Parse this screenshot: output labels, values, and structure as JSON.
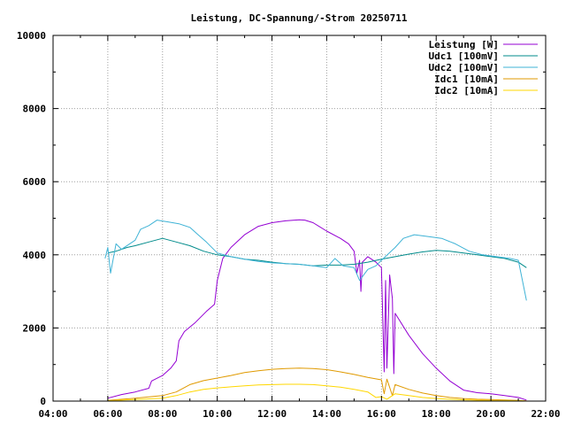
{
  "chart_data": {
    "type": "line",
    "title": "Leistung, DC-Spannung/-Strom 20250711",
    "xlabel": "",
    "ylabel": "",
    "x_unit": "hour",
    "xlim": [
      4,
      22
    ],
    "ylim": [
      0,
      10000
    ],
    "grid": true,
    "legend_position": "top-right",
    "x_ticks": [
      {
        "value": 4,
        "label": "04:00"
      },
      {
        "value": 6,
        "label": "06:00"
      },
      {
        "value": 8,
        "label": "08:00"
      },
      {
        "value": 10,
        "label": "10:00"
      },
      {
        "value": 12,
        "label": "12:00"
      },
      {
        "value": 14,
        "label": "14:00"
      },
      {
        "value": 16,
        "label": "16:00"
      },
      {
        "value": 18,
        "label": "18:00"
      },
      {
        "value": 20,
        "label": "20:00"
      },
      {
        "value": 22,
        "label": "22:00"
      }
    ],
    "y_ticks": [
      {
        "value": 0,
        "label": "0"
      },
      {
        "value": 2000,
        "label": "2000"
      },
      {
        "value": 4000,
        "label": "4000"
      },
      {
        "value": 6000,
        "label": "6000"
      },
      {
        "value": 8000,
        "label": "8000"
      },
      {
        "value": 10000,
        "label": "10000"
      }
    ],
    "series": [
      {
        "name": "Leistung [W]",
        "color": "#9400d3",
        "points": [
          [
            6.0,
            80
          ],
          [
            6.5,
            180
          ],
          [
            7.0,
            250
          ],
          [
            7.5,
            350
          ],
          [
            7.6,
            550
          ],
          [
            8.0,
            700
          ],
          [
            8.3,
            900
          ],
          [
            8.5,
            1100
          ],
          [
            8.6,
            1650
          ],
          [
            8.8,
            1900
          ],
          [
            9.2,
            2150
          ],
          [
            9.6,
            2450
          ],
          [
            9.9,
            2650
          ],
          [
            10.0,
            3300
          ],
          [
            10.2,
            3900
          ],
          [
            10.5,
            4200
          ],
          [
            11.0,
            4550
          ],
          [
            11.5,
            4780
          ],
          [
            12.0,
            4880
          ],
          [
            12.5,
            4930
          ],
          [
            13.0,
            4960
          ],
          [
            13.2,
            4950
          ],
          [
            13.5,
            4880
          ],
          [
            14.0,
            4650
          ],
          [
            14.5,
            4450
          ],
          [
            14.8,
            4300
          ],
          [
            15.0,
            4100
          ],
          [
            15.1,
            3500
          ],
          [
            15.2,
            3850
          ],
          [
            15.25,
            3000
          ],
          [
            15.3,
            3800
          ],
          [
            15.5,
            3950
          ],
          [
            15.8,
            3800
          ],
          [
            16.0,
            3650
          ],
          [
            16.1,
            800
          ],
          [
            16.15,
            3300
          ],
          [
            16.2,
            900
          ],
          [
            16.3,
            3450
          ],
          [
            16.4,
            2800
          ],
          [
            16.45,
            750
          ],
          [
            16.5,
            2400
          ],
          [
            17.0,
            1800
          ],
          [
            17.5,
            1300
          ],
          [
            18.0,
            900
          ],
          [
            18.5,
            550
          ],
          [
            19.0,
            300
          ],
          [
            19.5,
            230
          ],
          [
            20.0,
            200
          ],
          [
            20.5,
            150
          ],
          [
            21.0,
            100
          ],
          [
            21.3,
            30
          ]
        ]
      },
      {
        "name": "Udc1 [100mV]",
        "color": "#008b8b",
        "points": [
          [
            6.0,
            4050
          ],
          [
            6.3,
            4100
          ],
          [
            6.7,
            4200
          ],
          [
            7.0,
            4250
          ],
          [
            7.5,
            4350
          ],
          [
            8.0,
            4450
          ],
          [
            8.5,
            4350
          ],
          [
            9.0,
            4250
          ],
          [
            9.5,
            4100
          ],
          [
            10.0,
            4000
          ],
          [
            10.5,
            3950
          ],
          [
            11.0,
            3880
          ],
          [
            11.5,
            3850
          ],
          [
            12.0,
            3800
          ],
          [
            12.5,
            3760
          ],
          [
            13.0,
            3740
          ],
          [
            13.5,
            3700
          ],
          [
            14.0,
            3720
          ],
          [
            14.5,
            3720
          ],
          [
            15.0,
            3740
          ],
          [
            15.5,
            3800
          ],
          [
            16.0,
            3880
          ],
          [
            16.5,
            3950
          ],
          [
            17.0,
            4020
          ],
          [
            17.5,
            4080
          ],
          [
            18.0,
            4120
          ],
          [
            18.5,
            4100
          ],
          [
            19.0,
            4050
          ],
          [
            19.5,
            4000
          ],
          [
            20.0,
            3950
          ],
          [
            20.5,
            3900
          ],
          [
            21.0,
            3800
          ],
          [
            21.3,
            3650
          ]
        ]
      },
      {
        "name": "Udc2 [100mV]",
        "color": "#3fb3d6",
        "points": [
          [
            5.9,
            3900
          ],
          [
            6.0,
            4200
          ],
          [
            6.1,
            3500
          ],
          [
            6.3,
            4300
          ],
          [
            6.5,
            4150
          ],
          [
            7.0,
            4400
          ],
          [
            7.2,
            4700
          ],
          [
            7.5,
            4800
          ],
          [
            7.8,
            4950
          ],
          [
            8.2,
            4900
          ],
          [
            8.6,
            4850
          ],
          [
            9.0,
            4750
          ],
          [
            9.3,
            4550
          ],
          [
            9.6,
            4350
          ],
          [
            10.0,
            4050
          ],
          [
            10.5,
            3950
          ],
          [
            11.0,
            3880
          ],
          [
            11.5,
            3820
          ],
          [
            12.0,
            3780
          ],
          [
            12.5,
            3760
          ],
          [
            13.0,
            3740
          ],
          [
            13.5,
            3700
          ],
          [
            14.0,
            3650
          ],
          [
            14.3,
            3900
          ],
          [
            14.6,
            3700
          ],
          [
            15.0,
            3650
          ],
          [
            15.2,
            3300
          ],
          [
            15.5,
            3600
          ],
          [
            15.8,
            3700
          ],
          [
            16.0,
            3850
          ],
          [
            16.5,
            4200
          ],
          [
            16.8,
            4450
          ],
          [
            17.2,
            4550
          ],
          [
            17.7,
            4500
          ],
          [
            18.2,
            4450
          ],
          [
            18.7,
            4300
          ],
          [
            19.2,
            4100
          ],
          [
            19.7,
            4000
          ],
          [
            20.2,
            3950
          ],
          [
            20.7,
            3900
          ],
          [
            21.0,
            3850
          ],
          [
            21.3,
            2750
          ]
        ]
      },
      {
        "name": "Idc1 [10mA]",
        "color": "#e09a00",
        "points": [
          [
            6.0,
            20
          ],
          [
            7.0,
            80
          ],
          [
            8.0,
            150
          ],
          [
            8.5,
            250
          ],
          [
            9.0,
            450
          ],
          [
            9.5,
            560
          ],
          [
            10.0,
            630
          ],
          [
            10.5,
            700
          ],
          [
            11.0,
            780
          ],
          [
            11.5,
            830
          ],
          [
            12.0,
            870
          ],
          [
            12.5,
            890
          ],
          [
            13.0,
            900
          ],
          [
            13.5,
            890
          ],
          [
            14.0,
            860
          ],
          [
            14.5,
            800
          ],
          [
            15.0,
            730
          ],
          [
            15.5,
            650
          ],
          [
            16.0,
            580
          ],
          [
            16.1,
            200
          ],
          [
            16.2,
            600
          ],
          [
            16.4,
            150
          ],
          [
            16.5,
            450
          ],
          [
            17.0,
            320
          ],
          [
            17.5,
            220
          ],
          [
            18.0,
            150
          ],
          [
            18.5,
            100
          ],
          [
            19.0,
            70
          ],
          [
            19.5,
            50
          ],
          [
            20.0,
            40
          ],
          [
            20.5,
            30
          ],
          [
            21.0,
            20
          ],
          [
            21.3,
            5
          ]
        ]
      },
      {
        "name": "Idc2 [10mA]",
        "color": "#ffd700",
        "points": [
          [
            6.0,
            10
          ],
          [
            7.0,
            40
          ],
          [
            8.0,
            80
          ],
          [
            8.5,
            150
          ],
          [
            9.0,
            250
          ],
          [
            9.5,
            320
          ],
          [
            10.0,
            360
          ],
          [
            10.5,
            390
          ],
          [
            11.0,
            420
          ],
          [
            11.5,
            440
          ],
          [
            12.0,
            450
          ],
          [
            12.5,
            460
          ],
          [
            13.0,
            460
          ],
          [
            13.5,
            450
          ],
          [
            14.0,
            420
          ],
          [
            14.5,
            380
          ],
          [
            15.0,
            320
          ],
          [
            15.5,
            250
          ],
          [
            15.8,
            100
          ],
          [
            16.0,
            120
          ],
          [
            16.2,
            50
          ],
          [
            16.5,
            200
          ],
          [
            17.0,
            150
          ],
          [
            17.5,
            100
          ],
          [
            18.0,
            70
          ],
          [
            18.5,
            50
          ],
          [
            19.0,
            35
          ],
          [
            19.5,
            25
          ],
          [
            20.0,
            20
          ],
          [
            20.5,
            15
          ],
          [
            21.0,
            10
          ],
          [
            21.3,
            0
          ]
        ]
      }
    ]
  }
}
